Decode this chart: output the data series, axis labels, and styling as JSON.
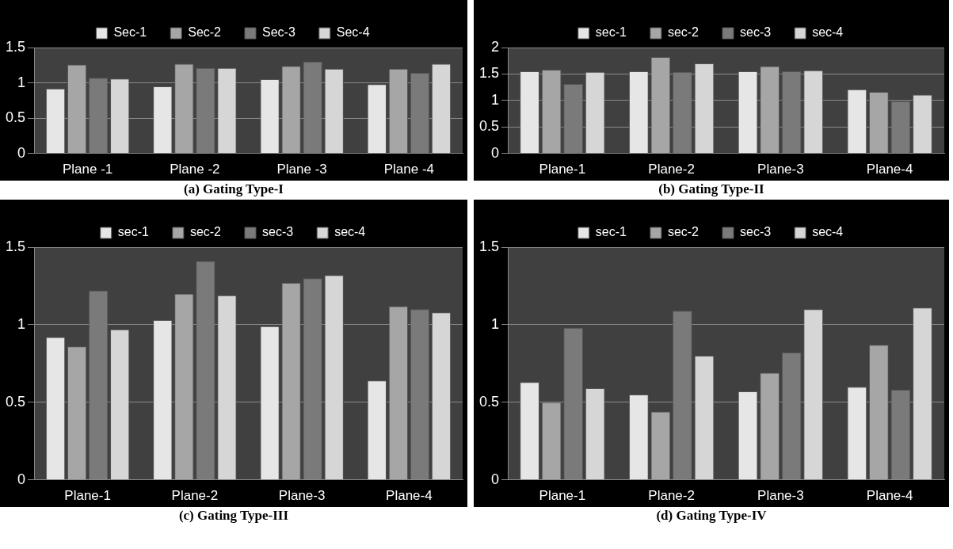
{
  "chart_data": [
    {
      "type": "bar",
      "title": "(a) Gating Type-I",
      "categories": [
        "Plane -1",
        "Plane -2",
        "Plane -3",
        "Plane -4"
      ],
      "ylim": [
        0,
        1.5
      ],
      "yticks": [
        0,
        0.5,
        1,
        1.5
      ],
      "grid": "y",
      "legend": "top",
      "series": [
        {
          "name": "Sec-1",
          "color": "#e6e6e6",
          "values": [
            0.92,
            0.95,
            1.05,
            0.98
          ]
        },
        {
          "name": "Sec-2",
          "color": "#a6a6a6",
          "values": [
            1.26,
            1.27,
            1.24,
            1.2
          ]
        },
        {
          "name": "Sec-3",
          "color": "#7a7a7a",
          "values": [
            1.07,
            1.21,
            1.3,
            1.14
          ]
        },
        {
          "name": "Sec-4",
          "color": "#d6d6d6",
          "values": [
            1.06,
            1.21,
            1.2,
            1.27
          ]
        }
      ]
    },
    {
      "type": "bar",
      "title": "(b) Gating Type-II",
      "categories": [
        "Plane-1",
        "Plane-2",
        "Plane-3",
        "Plane-4"
      ],
      "ylim": [
        0,
        2
      ],
      "yticks": [
        0,
        0.5,
        1,
        1.5,
        2
      ],
      "grid": "y",
      "legend": "top",
      "series": [
        {
          "name": "sec-1",
          "color": "#e6e6e6",
          "values": [
            1.55,
            1.55,
            1.55,
            1.21
          ]
        },
        {
          "name": "sec-2",
          "color": "#a6a6a6",
          "values": [
            1.58,
            1.82,
            1.65,
            1.16
          ]
        },
        {
          "name": "sec-3",
          "color": "#7a7a7a",
          "values": [
            1.31,
            1.54,
            1.55,
            0.99
          ]
        },
        {
          "name": "sec-4",
          "color": "#d6d6d6",
          "values": [
            1.54,
            1.7,
            1.57,
            1.11
          ]
        }
      ]
    },
    {
      "type": "bar",
      "title": "(c) Gating Type-III",
      "categories": [
        "Plane-1",
        "Plane-2",
        "Plane-3",
        "Plane-4"
      ],
      "ylim": [
        0,
        1.5
      ],
      "yticks": [
        0,
        0.5,
        1,
        1.5
      ],
      "grid": "y",
      "legend": "top",
      "series": [
        {
          "name": "sec-1",
          "color": "#e6e6e6",
          "values": [
            0.92,
            1.03,
            0.99,
            0.64
          ]
        },
        {
          "name": "sec-2",
          "color": "#a6a6a6",
          "values": [
            0.86,
            1.2,
            1.27,
            1.12
          ]
        },
        {
          "name": "sec-3",
          "color": "#7a7a7a",
          "values": [
            1.22,
            1.41,
            1.3,
            1.1
          ]
        },
        {
          "name": "sec-4",
          "color": "#d6d6d6",
          "values": [
            0.97,
            1.19,
            1.32,
            1.08
          ]
        }
      ]
    },
    {
      "type": "bar",
      "title": "(d) Gating Type-IV",
      "categories": [
        "Plane-1",
        "Plane-2",
        "Plane-3",
        "Plane-4"
      ],
      "ylim": [
        0,
        1.5
      ],
      "yticks": [
        0,
        0.5,
        1,
        1.5
      ],
      "grid": "y",
      "legend": "top",
      "series": [
        {
          "name": "sec-1",
          "color": "#e6e6e6",
          "values": [
            0.63,
            0.55,
            0.57,
            0.6
          ]
        },
        {
          "name": "sec-2",
          "color": "#a6a6a6",
          "values": [
            0.5,
            0.44,
            0.69,
            0.87
          ]
        },
        {
          "name": "sec-3",
          "color": "#7a7a7a",
          "values": [
            0.98,
            1.09,
            0.82,
            0.58
          ]
        },
        {
          "name": "sec-4",
          "color": "#d6d6d6",
          "values": [
            0.59,
            0.8,
            1.1,
            1.11
          ]
        }
      ]
    }
  ]
}
